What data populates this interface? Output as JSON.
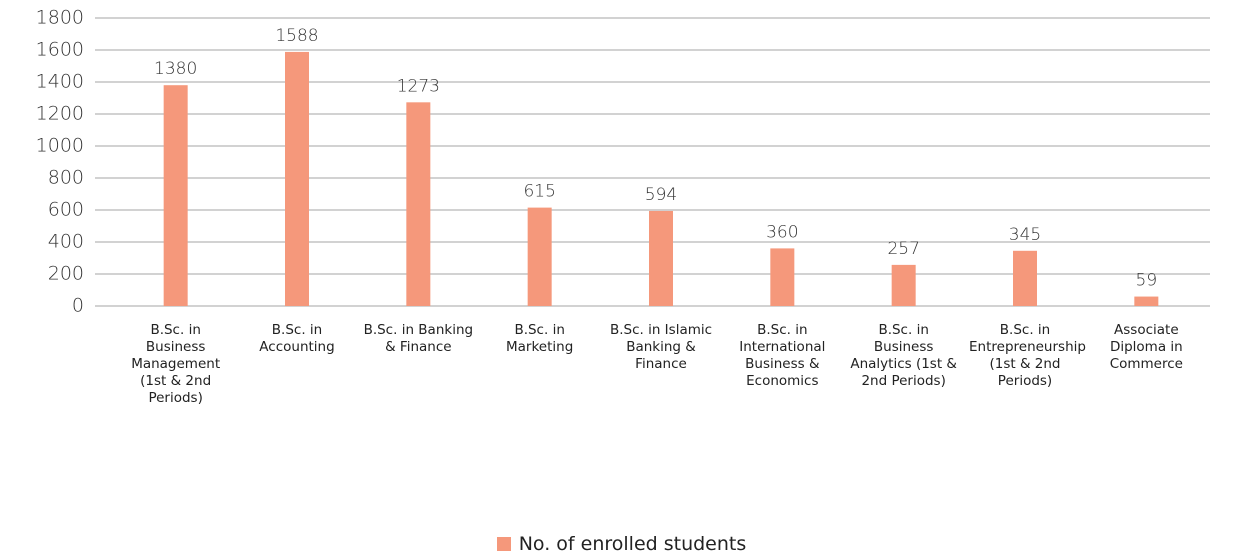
{
  "chart_data": {
    "type": "bar",
    "categories": [
      "B.Sc. in Business Management (1st & 2nd Periods)",
      "B.Sc. in Accounting",
      "B.Sc. in Banking & Finance",
      "B.Sc. in Marketing",
      "B.Sc. in Islamic Banking & Finance",
      "B.Sc. in International Business & Economics",
      "B.Sc. in Business Analytics (1st & 2nd Periods)",
      "B.Sc. in Entrepreneurship (1st & 2nd Periods)",
      "Associate Diploma in Commerce"
    ],
    "series": [
      {
        "name": "No. of enrolled students",
        "color": "#f5987b",
        "values": [
          1380,
          1588,
          1273,
          615,
          594,
          360,
          257,
          345,
          59
        ]
      }
    ],
    "ylim": [
      0,
      1800
    ],
    "yticks": [
      0,
      200,
      400,
      600,
      800,
      1000,
      1200,
      1400,
      1600,
      1800
    ],
    "grid": true,
    "legend": "bottom"
  }
}
